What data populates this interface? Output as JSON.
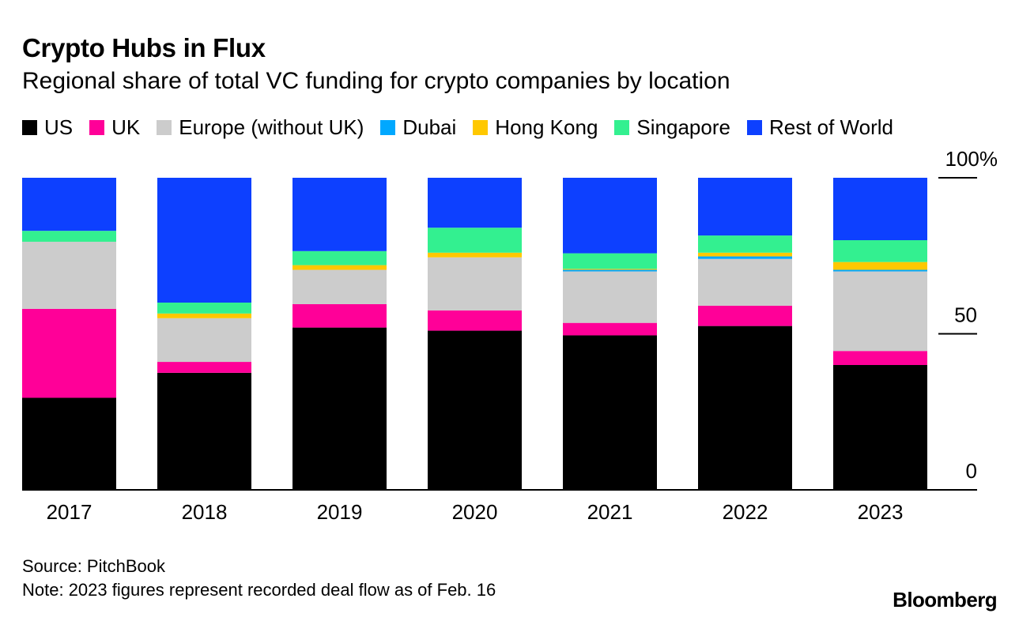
{
  "title": "Crypto Hubs in Flux",
  "subtitle": "Regional share of total VC funding for crypto companies by location",
  "source": "Source: PitchBook",
  "note": "Note: 2023 figures represent recorded deal flow as of Feb. 16",
  "brand": "Bloomberg",
  "chart_data": {
    "type": "bar",
    "stacked": true,
    "categories": [
      "2017",
      "2018",
      "2019",
      "2020",
      "2021",
      "2022",
      "2023"
    ],
    "ylim": [
      0,
      100
    ],
    "yticks": [
      0,
      50,
      100
    ],
    "ytick_labels": [
      "0",
      "50",
      "100%"
    ],
    "legend_position": "top",
    "series": [
      {
        "name": "US",
        "color": "#000000",
        "values": [
          29.5,
          37.5,
          52,
          51,
          49.5,
          52.5,
          40
        ]
      },
      {
        "name": "UK",
        "color": "#ff0098",
        "values": [
          28.5,
          3.5,
          7.5,
          6.5,
          4,
          6.5,
          4.5
        ]
      },
      {
        "name": "Europe (without UK)",
        "color": "#cccccc",
        "values": [
          21.5,
          14,
          11,
          17,
          16.5,
          15,
          25.5
        ]
      },
      {
        "name": "Dubai",
        "color": "#00a8ff",
        "values": [
          0,
          0,
          0,
          0,
          0.5,
          0.8,
          0.5
        ]
      },
      {
        "name": "Hong Kong",
        "color": "#ffc800",
        "values": [
          0,
          1.5,
          1.5,
          1.5,
          0.3,
          1.2,
          2.5
        ]
      },
      {
        "name": "Singapore",
        "color": "#33f090",
        "values": [
          3.5,
          3.5,
          4.5,
          8,
          5,
          5.5,
          7
        ]
      },
      {
        "name": "Rest of World",
        "color": "#0d40ff",
        "values": [
          17,
          40,
          23.5,
          16,
          24.2,
          18.5,
          20
        ]
      }
    ]
  }
}
